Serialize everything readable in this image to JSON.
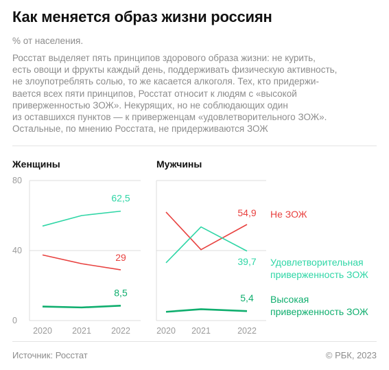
{
  "title": "Как меняется образ жизни россиян",
  "subtitle": "% от населения.",
  "description_lines": [
    "Росстат выделяет пять принципов здорового образа жизни: не курить,",
    "есть овощи и фрукты каждый день, поддерживать физическую активность,",
    "не злоупотреблять солью, то же касается алкоголя. Тех, кто придержи-",
    "вается всех пяти принципов, Росстат относит к людям с «высокой",
    "приверженностью ЗОЖ». Некурящих, но не соблюдающих один",
    "из оставшихся пунктов — к приверженцам «удовлетворительного ЗОЖ».",
    "Остальные, по мнению Росстата, не придерживаются ЗОЖ"
  ],
  "footer": {
    "source": "Источник: Росстат",
    "copyright": "© РБК, 2023"
  },
  "colors": {
    "no_zozh": "#e8413f",
    "satisfactory": "#2fd6a6",
    "high": "#0fae6e"
  },
  "chart_data": [
    {
      "type": "line",
      "title": "Женщины",
      "x": [
        "2020",
        "2021",
        "2022"
      ],
      "yticks": [
        "0",
        "40",
        "80"
      ],
      "ylim": [
        0,
        80
      ],
      "series": [
        {
          "key": "satisfactory",
          "values": [
            54,
            60,
            62.5
          ],
          "end_label": "62,5"
        },
        {
          "key": "no_zozh",
          "values": [
            37.5,
            32.5,
            29
          ],
          "end_label": "29"
        },
        {
          "key": "high",
          "values": [
            8,
            7.5,
            8.5
          ],
          "end_label": "8,5"
        }
      ]
    },
    {
      "type": "line",
      "title": "Мужчины",
      "x": [
        "2020",
        "2021",
        "2022"
      ],
      "ylim": [
        0,
        80
      ],
      "series": [
        {
          "key": "no_zozh",
          "name": "Не ЗОЖ",
          "values": [
            62,
            40.5,
            54.9
          ],
          "end_label": "54,9"
        },
        {
          "key": "satisfactory",
          "name": "Удовлетворительная приверженность ЗОЖ",
          "values": [
            33,
            53.5,
            39.7
          ],
          "end_label": "39,7"
        },
        {
          "key": "high",
          "name": "Высокая приверженность ЗОЖ",
          "values": [
            5,
            6.5,
            5.4
          ],
          "end_label": "5,4"
        }
      ]
    }
  ],
  "legend": [
    {
      "key": "no_zozh",
      "lines": [
        "Не ЗОЖ"
      ]
    },
    {
      "key": "satisfactory",
      "lines": [
        "Удовлетворительная",
        "приверженность ЗОЖ"
      ]
    },
    {
      "key": "high",
      "lines": [
        "Высокая",
        "приверженность ЗОЖ"
      ]
    }
  ]
}
